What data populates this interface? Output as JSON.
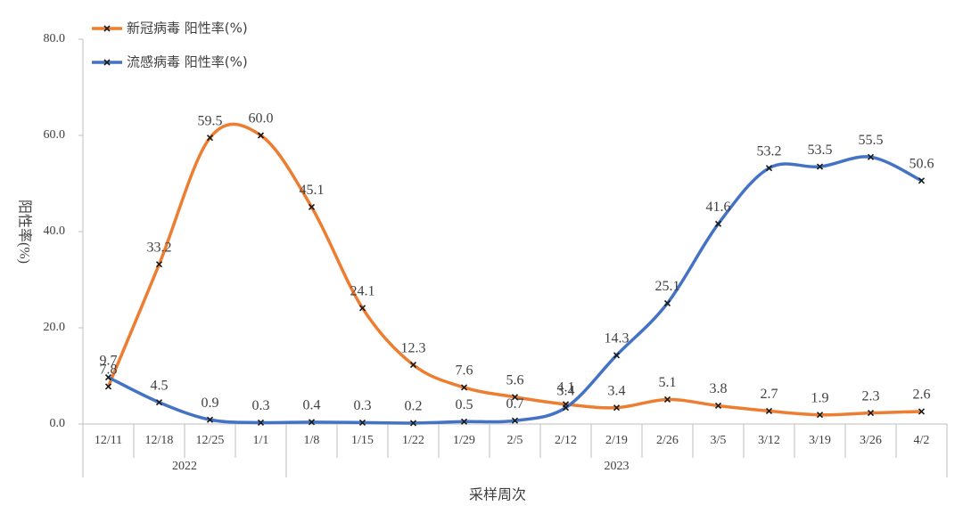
{
  "chart_data": {
    "type": "line",
    "x_label": "采样周次",
    "y_label": "阳性率(%)",
    "categories": [
      "12/11",
      "12/18",
      "12/25",
      "1/1",
      "1/8",
      "1/15",
      "1/22",
      "1/29",
      "2/5",
      "2/12",
      "2/19",
      "2/26",
      "3/5",
      "3/12",
      "3/19",
      "3/26",
      "4/2"
    ],
    "year_groups": [
      {
        "label": "2022",
        "count": 4
      },
      {
        "label": "2023",
        "count": 13
      }
    ],
    "series": [
      {
        "name": "新冠病毒 阳性率(%)",
        "color": "#ED7D31",
        "values": [
          7.8,
          33.2,
          59.5,
          60.0,
          45.1,
          24.1,
          12.3,
          7.6,
          5.6,
          4.1,
          3.4,
          5.1,
          3.8,
          2.7,
          1.9,
          2.3,
          2.6
        ],
        "value_labels": [
          "7.8",
          "33.2",
          "59.5",
          "60.0",
          "45.1",
          "24.1",
          "12.3",
          "7.6",
          "5.6",
          "4.1",
          "3.4",
          "5.1",
          "3.8",
          "2.7",
          "1.9",
          "2.3",
          "2.6"
        ]
      },
      {
        "name": "流感病毒 阳性率(%)",
        "color": "#4472C4",
        "values": [
          9.7,
          4.5,
          0.9,
          0.3,
          0.4,
          0.3,
          0.2,
          0.5,
          0.7,
          3.4,
          14.3,
          25.1,
          41.6,
          53.2,
          53.5,
          55.5,
          50.6
        ],
        "value_labels": [
          "9.7",
          "4.5",
          "0.9",
          "0.3",
          "0.4",
          "0.3",
          "0.2",
          "0.5",
          "0.7",
          "3.4",
          "14.3",
          "25.1",
          "41.6",
          "53.2",
          "53.5",
          "55.5",
          "50.6"
        ]
      }
    ],
    "ylim": [
      0,
      80
    ],
    "yticks": [
      {
        "value": 0,
        "label": "0.0"
      },
      {
        "value": 20,
        "label": "20.0"
      },
      {
        "value": 40,
        "label": "40.0"
      },
      {
        "value": 60,
        "label": "60.0"
      },
      {
        "value": 80,
        "label": "80.0"
      }
    ],
    "smooth": true,
    "legend": "top-left"
  }
}
